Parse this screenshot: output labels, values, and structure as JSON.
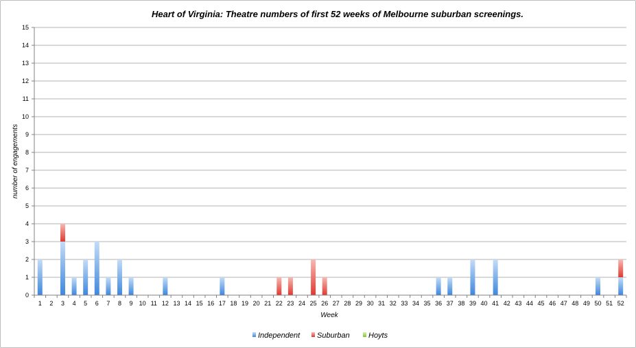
{
  "chart_data": {
    "type": "bar",
    "stacked": true,
    "title": "Heart of Virginia: Theatre numbers of first 52 weeks of Melbourne suburban screenings.",
    "xlabel": "Week",
    "ylabel": "number of engagements",
    "ylim": [
      0,
      15
    ],
    "yticks": [
      "0",
      "1",
      "2",
      "3",
      "4",
      "5",
      "6",
      "7",
      "8",
      "9",
      "10",
      "11",
      "12",
      "13",
      "14",
      "15"
    ],
    "grid": true,
    "legend_position": "bottom",
    "categories": [
      "1",
      "2",
      "3",
      "4",
      "5",
      "6",
      "7",
      "8",
      "9",
      "10",
      "11",
      "12",
      "13",
      "14",
      "15",
      "16",
      "17",
      "18",
      "19",
      "20",
      "21",
      "22",
      "23",
      "24",
      "25",
      "26",
      "27",
      "28",
      "29",
      "30",
      "31",
      "32",
      "33",
      "34",
      "35",
      "36",
      "37",
      "38",
      "39",
      "40",
      "41",
      "42",
      "43",
      "44",
      "45",
      "46",
      "47",
      "48",
      "49",
      "50",
      "51",
      "52"
    ],
    "series": [
      {
        "name": "Independent",
        "color": "#4a90e2",
        "values": [
          2,
          0,
          3,
          1,
          2,
          3,
          1,
          2,
          1,
          0,
          0,
          1,
          0,
          0,
          0,
          0,
          1,
          0,
          0,
          0,
          0,
          0,
          0,
          0,
          0,
          0,
          0,
          0,
          0,
          0,
          0,
          0,
          0,
          0,
          0,
          1,
          1,
          0,
          2,
          0,
          2,
          0,
          0,
          0,
          0,
          0,
          0,
          0,
          0,
          1,
          0,
          1
        ]
      },
      {
        "name": "Suburban",
        "color": "#e8443c",
        "values": [
          0,
          0,
          1,
          0,
          0,
          0,
          0,
          0,
          0,
          0,
          0,
          0,
          0,
          0,
          0,
          0,
          0,
          0,
          0,
          0,
          0,
          1,
          1,
          0,
          2,
          1,
          0,
          0,
          0,
          0,
          0,
          0,
          0,
          0,
          0,
          0,
          0,
          0,
          0,
          0,
          0,
          0,
          0,
          0,
          0,
          0,
          0,
          0,
          0,
          0,
          0,
          1
        ]
      },
      {
        "name": "Hoyts",
        "color": "#8fcc3c",
        "values": [
          0,
          0,
          0,
          0,
          0,
          0,
          0,
          0,
          0,
          0,
          0,
          0,
          0,
          0,
          0,
          0,
          0,
          0,
          0,
          0,
          0,
          0,
          0,
          0,
          0,
          0,
          0,
          0,
          0,
          0,
          0,
          0,
          0,
          0,
          0,
          0,
          0,
          0,
          0,
          0,
          0,
          0,
          0,
          0,
          0,
          0,
          0,
          0,
          0,
          0,
          0,
          0
        ]
      }
    ]
  }
}
